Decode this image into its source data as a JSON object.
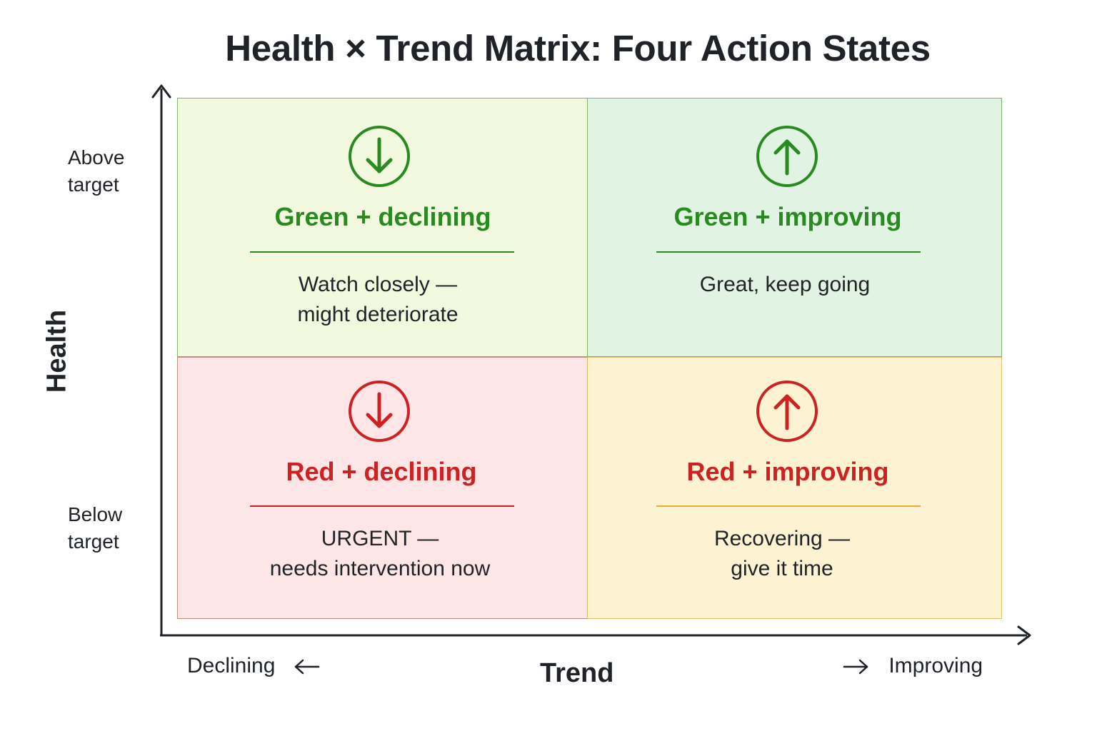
{
  "title": "Health × Trend Matrix: Four Action States",
  "axes": {
    "y_title": "Health",
    "y_top": [
      "Above",
      "target"
    ],
    "y_bottom": [
      "Below",
      "target"
    ],
    "x_title": "Trend",
    "x_left": "Declining",
    "x_right": "Improving"
  },
  "quadrants": [
    {
      "key": "green-declining",
      "heading": "Green + declining",
      "desc": [
        "Watch closely —",
        "might deteriorate"
      ],
      "icon": "arrow-down-circle-icon",
      "color": "#2a8a22"
    },
    {
      "key": "green-improving",
      "heading": "Green + improving",
      "desc": [
        "Great, keep going"
      ],
      "icon": "arrow-up-circle-icon",
      "color": "#2a8a22"
    },
    {
      "key": "red-declining",
      "heading": "Red + declining",
      "desc": [
        "URGENT —",
        "needs intervention now"
      ],
      "icon": "arrow-down-circle-icon",
      "color": "#cc2222"
    },
    {
      "key": "red-improving",
      "heading": "Red + improving",
      "desc": [
        "Recovering —",
        "give it time"
      ],
      "icon": "arrow-up-circle-icon",
      "color": "#cc2222"
    }
  ],
  "colors": {
    "green": "#2a8a22",
    "red": "#cc2222",
    "rule_amber": "#e8a93a",
    "green_declining_bg": "#f3f9df",
    "green_improving_bg": "#e1f3e2",
    "red_declining_bg": "#fde6e5",
    "red_improving_bg": "#fdf3d2"
  }
}
